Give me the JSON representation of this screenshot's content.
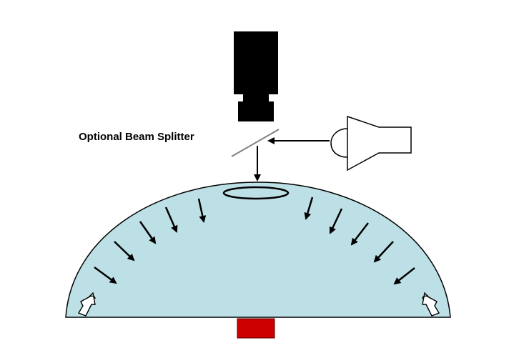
{
  "diagram": {
    "splitter_label": "Optional Beam Splitter"
  },
  "colors": {
    "dome_fill": "#bde0e6",
    "stroke": "#000000",
    "splitter": "#808080",
    "sample": "#cc0000"
  },
  "icons": {
    "camera": "camera-icon",
    "light_source": "light-source-icon",
    "side_lamp": "lamp-icon"
  }
}
